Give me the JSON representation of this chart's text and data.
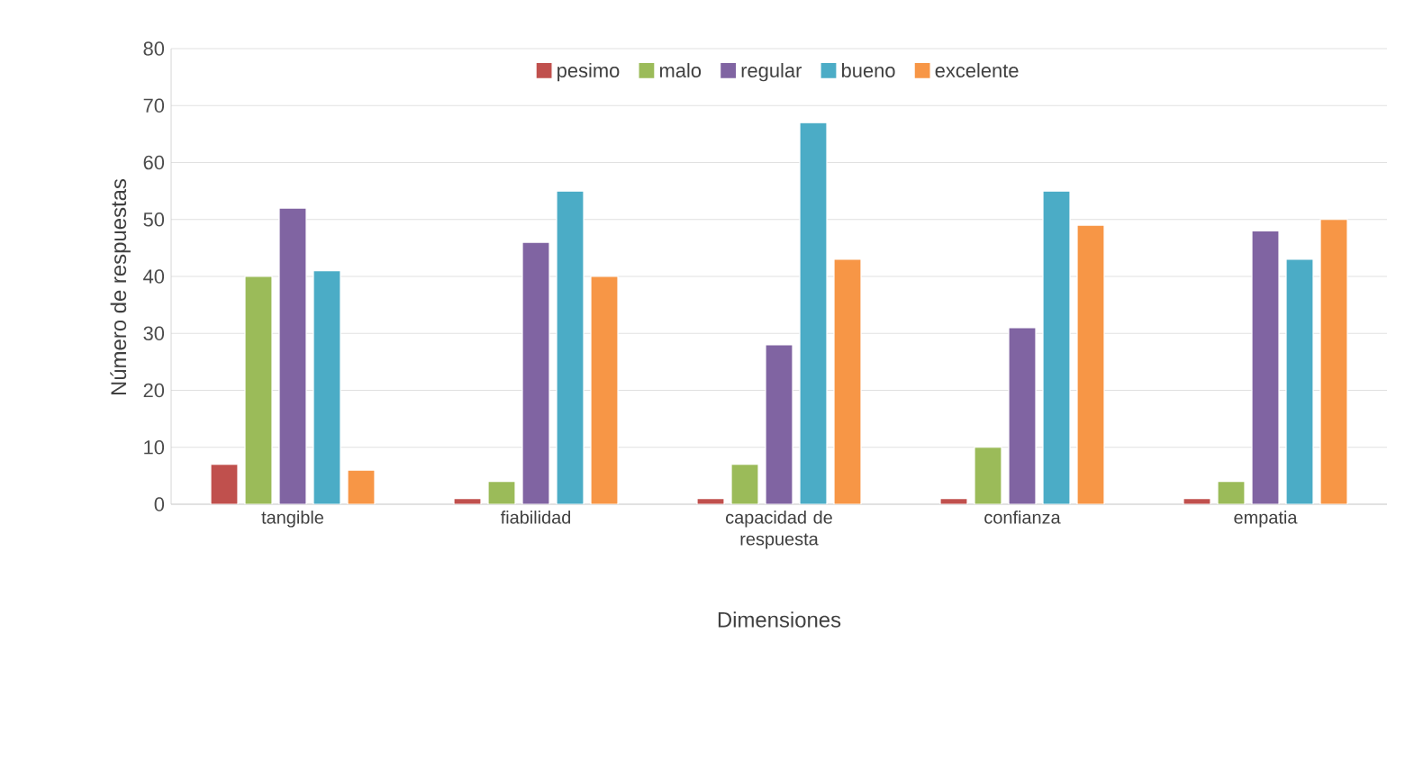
{
  "chart_data": {
    "type": "bar",
    "xlabel": "Dimensiones",
    "ylabel": "Número de respuestas",
    "categories": [
      "tangible",
      "fiabilidad",
      "capacidad de respuesta",
      "confianza",
      "empatia"
    ],
    "series": [
      {
        "name": "pesimo",
        "color": "#c0504d",
        "values": [
          7,
          1,
          1,
          1,
          1
        ]
      },
      {
        "name": "malo",
        "color": "#9bbb59",
        "values": [
          40,
          4,
          7,
          10,
          4
        ]
      },
      {
        "name": "regular",
        "color": "#8064a2",
        "values": [
          52,
          46,
          28,
          31,
          48
        ]
      },
      {
        "name": "bueno",
        "color": "#4bacc6",
        "values": [
          41,
          55,
          67,
          55,
          43
        ]
      },
      {
        "name": "excelente",
        "color": "#f79646",
        "values": [
          6,
          40,
          43,
          49,
          50
        ]
      }
    ],
    "ylim": [
      0,
      80
    ],
    "yticks": [
      0,
      10,
      20,
      30,
      40,
      50,
      60,
      70,
      80
    ],
    "grid": "y",
    "legend": "top"
  }
}
